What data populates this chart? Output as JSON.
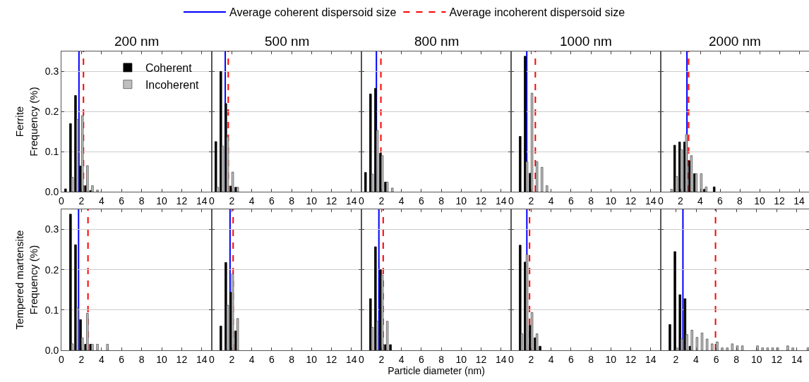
{
  "chart_data": [
    {
      "type": "bar",
      "title": "200 nm",
      "ylabel": "Ferrite\nFrequency (%)",
      "legend": "top right",
      "grid": "y",
      "xlim": [
        0,
        15
      ],
      "xticks": [
        0,
        2,
        4,
        6,
        8,
        10,
        12,
        14
      ],
      "ylim": [
        0,
        0.35
      ],
      "yticks": [
        {
          "value": 0,
          "label": "0.0"
        },
        {
          "value": 0.1,
          "label": "0.1"
        },
        {
          "value": 0.2,
          "label": "0.2"
        },
        {
          "value": 0.3,
          "label": "0.3"
        }
      ],
      "series": [
        {
          "name": "Coherent",
          "color": "#000000",
          "x": [
            0.5,
            1.0,
            1.5,
            2.0,
            2.5,
            3.0
          ],
          "values": [
            0.007,
            0.17,
            0.24,
            0.064,
            0.015,
            0.003
          ]
        },
        {
          "name": "Incoherent",
          "color": "#bfbfbf",
          "x": [
            1.0,
            1.5,
            2.0,
            2.5,
            3.0,
            3.5
          ],
          "values": [
            0.036,
            0.18,
            0.19,
            0.065,
            0.015,
            0.004
          ]
        }
      ],
      "ref_lines": [
        {
          "axis": "x",
          "value": 1.75,
          "label": "Average coherent dispersoid size",
          "color": "#0000ff",
          "line_style": "solid"
        },
        {
          "axis": "x",
          "value": 2.2,
          "label": "Average incoherent dispersoid size",
          "color": "#ff0000",
          "line_style": "dashed"
        }
      ]
    },
    {
      "type": "bar",
      "title": "500 nm",
      "grid": "y",
      "tick_labels": "x",
      "xlim": [
        0,
        15
      ],
      "xticks": [
        0,
        2,
        4,
        6,
        8,
        10,
        12,
        14
      ],
      "ylim": [
        0,
        0.35
      ],
      "yticks": [
        0,
        0.1,
        0.2,
        0.3
      ],
      "series": [
        {
          "color": "#000000",
          "x": [
            0.5,
            1.0,
            1.5,
            2.0,
            2.5
          ],
          "values": [
            0.125,
            0.3,
            0.22,
            0.014,
            0.011
          ]
        },
        {
          "color": "#bfbfbf",
          "x": [
            0.5,
            1.0,
            1.5,
            2.0,
            2.5
          ],
          "values": [
            0.011,
            0.114,
            0.137,
            0.049,
            0.011
          ]
        }
      ],
      "ref_lines": [
        {
          "axis": "x",
          "value": 1.35,
          "color": "#0000ff",
          "line_style": "solid"
        },
        {
          "axis": "x",
          "value": 1.65,
          "color": "#ff0000",
          "line_style": "dashed"
        }
      ]
    },
    {
      "type": "bar",
      "title": "800 nm",
      "grid": "y",
      "tick_labels": "x",
      "xlim": [
        0,
        15
      ],
      "xticks": [
        0,
        2,
        4,
        6,
        8,
        10,
        12,
        14
      ],
      "ylim": [
        0,
        0.35
      ],
      "yticks": [
        0,
        0.1,
        0.2,
        0.3
      ],
      "series": [
        {
          "color": "#000000",
          "x": [
            0.5,
            1.0,
            1.5,
            2.0,
            2.5
          ],
          "values": [
            0.048,
            0.244,
            0.258,
            0.096,
            0.024
          ]
        },
        {
          "color": "#bfbfbf",
          "x": [
            1.0,
            1.5,
            2.0,
            2.5,
            3.0
          ],
          "values": [
            0.044,
            0.153,
            0.09,
            0.024,
            0.009
          ]
        }
      ],
      "ref_lines": [
        {
          "axis": "x",
          "value": 1.5,
          "color": "#0000ff",
          "line_style": "solid"
        },
        {
          "axis": "x",
          "value": 1.95,
          "color": "#ff0000",
          "line_style": "dashed"
        }
      ]
    },
    {
      "type": "bar",
      "title": "1000 nm",
      "grid": "y",
      "tick_labels": "x",
      "xlim": [
        0,
        15
      ],
      "xticks": [
        0,
        2,
        4,
        6,
        8,
        10,
        12,
        14
      ],
      "ylim": [
        0,
        0.35
      ],
      "yticks": [
        0,
        0.1,
        0.2,
        0.3
      ],
      "series": [
        {
          "color": "#000000",
          "x": [
            1.0,
            1.5,
            2.0
          ],
          "values": [
            0.138,
            0.338,
            0.046
          ]
        },
        {
          "color": "#bfbfbf",
          "x": [
            1.5,
            2.0,
            2.5,
            3.0,
            3.5
          ],
          "values": [
            0.075,
            0.246,
            0.075,
            0.061,
            0.015
          ]
        }
      ],
      "ref_lines": [
        {
          "axis": "x",
          "value": 1.57,
          "color": "#0000ff",
          "line_style": "solid"
        },
        {
          "axis": "x",
          "value": 2.43,
          "color": "#ff0000",
          "line_style": "dashed"
        }
      ]
    },
    {
      "type": "bar",
      "title": "2000 nm",
      "grid": "y",
      "tick_labels": "x",
      "xlim": [
        0,
        15
      ],
      "xticks": [
        0,
        2,
        4,
        6,
        8,
        10,
        12,
        14
      ],
      "ylim": [
        0,
        0.35
      ],
      "yticks": [
        0,
        0.1,
        0.2,
        0.3
      ],
      "series": [
        {
          "color": "#000000",
          "x": [
            1.5,
            2.0,
            2.5,
            3.0,
            3.5,
            4.5,
            5.5
          ],
          "values": [
            0.116,
            0.124,
            0.124,
            0.077,
            0.045,
            0.006,
            0.012
          ]
        },
        {
          "color": "#bfbfbf",
          "x": [
            1.0,
            1.5,
            2.0,
            2.5,
            3.0,
            3.5,
            4.0,
            4.5
          ],
          "values": [
            0.006,
            0.038,
            0.105,
            0.143,
            0.09,
            0.045,
            0.045,
            0.012
          ]
        }
      ],
      "ref_lines": [
        {
          "axis": "x",
          "value": 2.65,
          "color": "#0000ff",
          "line_style": "solid"
        },
        {
          "axis": "x",
          "value": 2.82,
          "color": "#ff0000",
          "line_style": "dashed"
        }
      ]
    },
    {
      "type": "bar",
      "ylabel": "Tempered martensite\nFrequency (%)",
      "grid": "y",
      "xlim": [
        0,
        15
      ],
      "xticks": [
        0,
        2,
        4,
        6,
        8,
        10,
        12,
        14
      ],
      "ylim": [
        0,
        0.35
      ],
      "yticks": [
        {
          "value": 0,
          "label": "0.0"
        },
        {
          "value": 0.1,
          "label": "0.1"
        },
        {
          "value": 0.2,
          "label": "0.2"
        },
        {
          "value": 0.3,
          "label": "0.3"
        }
      ],
      "series": [
        {
          "color": "#000000",
          "x": [
            1.0,
            1.5,
            2.0,
            2.5,
            3.0
          ],
          "values": [
            0.338,
            0.262,
            0.076,
            0.015,
            0.015
          ]
        },
        {
          "color": "#bfbfbf",
          "x": [
            1.0,
            1.5,
            2.0,
            2.5,
            3.0,
            3.5,
            4.5
          ],
          "values": [
            0.016,
            0.106,
            0.031,
            0.092,
            0.015,
            0.015,
            0.015
          ]
        }
      ],
      "ref_lines": [
        {
          "axis": "x",
          "value": 1.71,
          "color": "#0000ff",
          "line_style": "solid"
        },
        {
          "axis": "x",
          "value": 2.65,
          "color": "#ff0000",
          "line_style": "dashed"
        }
      ]
    },
    {
      "type": "bar",
      "grid": "y",
      "tick_labels": "x",
      "xlim": [
        0,
        15
      ],
      "xticks": [
        0,
        2,
        4,
        6,
        8,
        10,
        12,
        14
      ],
      "ylim": [
        0,
        0.35
      ],
      "yticks": [
        0,
        0.1,
        0.2,
        0.3
      ],
      "series": [
        {
          "color": "#000000",
          "x": [
            1.0,
            1.5,
            2.0,
            2.5
          ],
          "values": [
            0.06,
            0.218,
            0.144,
            0.048
          ]
        },
        {
          "color": "#bfbfbf",
          "x": [
            1.5,
            2.0,
            2.5
          ],
          "values": [
            0.112,
            0.19,
            0.079
          ]
        }
      ],
      "ref_lines": [
        {
          "axis": "x",
          "value": 1.83,
          "color": "#0000ff",
          "line_style": "solid"
        },
        {
          "axis": "x",
          "value": 2.14,
          "color": "#ff0000",
          "line_style": "dashed"
        }
      ]
    },
    {
      "type": "bar",
      "xlabel": "Particle diameter (nm)",
      "grid": "y",
      "tick_labels": "x",
      "xlim": [
        0,
        15
      ],
      "xticks": [
        0,
        2,
        4,
        6,
        8,
        10,
        12,
        14
      ],
      "ylim": [
        0,
        0.35
      ],
      "yticks": [
        0,
        0.1,
        0.2,
        0.3
      ],
      "series": [
        {
          "color": "#000000",
          "x": [
            1.0,
            1.5,
            2.0,
            2.5,
            3.0
          ],
          "values": [
            0.128,
            0.257,
            0.2,
            0.014,
            0.014
          ]
        },
        {
          "color": "#bfbfbf",
          "x": [
            1.0,
            1.5,
            2.0,
            2.5
          ],
          "values": [
            0.057,
            0.072,
            0.187,
            0.072
          ]
        }
      ],
      "ref_lines": [
        {
          "axis": "x",
          "value": 1.75,
          "color": "#0000ff",
          "line_style": "solid"
        },
        {
          "axis": "x",
          "value": 2.18,
          "color": "#ff0000",
          "line_style": "dashed"
        }
      ]
    },
    {
      "type": "bar",
      "grid": "y",
      "tick_labels": "x",
      "xlim": [
        0,
        15
      ],
      "xticks": [
        0,
        2,
        4,
        6,
        8,
        10,
        12,
        14
      ],
      "ylim": [
        0,
        0.35
      ],
      "yticks": [
        0,
        0.1,
        0.2,
        0.3
      ],
      "series": [
        {
          "color": "#000000",
          "x": [
            1.0,
            1.5,
            2.0,
            2.5,
            3.0
          ],
          "values": [
            0.261,
            0.219,
            0.062,
            0.031,
            0.01
          ]
        },
        {
          "color": "#bfbfbf",
          "x": [
            1.0,
            1.5,
            2.0,
            2.5
          ],
          "values": [
            0.041,
            0.238,
            0.094,
            0.041
          ]
        }
      ],
      "ref_lines": [
        {
          "axis": "x",
          "value": 1.58,
          "color": "#0000ff",
          "line_style": "solid"
        },
        {
          "axis": "x",
          "value": 1.85,
          "color": "#ff0000",
          "line_style": "dashed"
        }
      ]
    },
    {
      "type": "bar",
      "grid": "y",
      "tick_labels": "x",
      "xlim": [
        0.5,
        15.2
      ],
      "xticks": [
        2,
        4,
        6,
        8,
        10,
        12,
        14
      ],
      "ylim": [
        0,
        0.35
      ],
      "yticks": [
        0,
        0.1,
        0.2,
        0.3
      ],
      "series": [
        {
          "color": "#000000",
          "x": [
            1.5,
            2.0,
            2.5,
            3.0,
            3.5
          ],
          "values": [
            0.064,
            0.245,
            0.138,
            0.128,
            0.01
          ]
        },
        {
          "color": "#bfbfbf",
          "x": [
            2.0,
            2.5,
            3.0,
            3.5,
            4.0,
            4.5,
            5.0,
            5.5,
            6.0,
            6.5,
            7.0,
            7.5,
            8.0,
            8.5,
            10.0,
            10.5,
            11.0,
            11.5,
            12.0,
            13.0,
            13.5,
            15.0
          ],
          "values": [
            0.006,
            0.028,
            0.039,
            0.05,
            0.032,
            0.043,
            0.028,
            0.016,
            0.021,
            0.006,
            0.006,
            0.016,
            0.011,
            0.011,
            0.011,
            0.006,
            0.006,
            0.006,
            0.006,
            0.011,
            0.006,
            0.006
          ]
        }
      ],
      "ref_lines": [
        {
          "axis": "x",
          "value": 2.7,
          "color": "#0000ff",
          "line_style": "solid"
        },
        {
          "axis": "x",
          "value": 5.93,
          "color": "#ff0000",
          "line_style": "dashed"
        }
      ]
    }
  ]
}
